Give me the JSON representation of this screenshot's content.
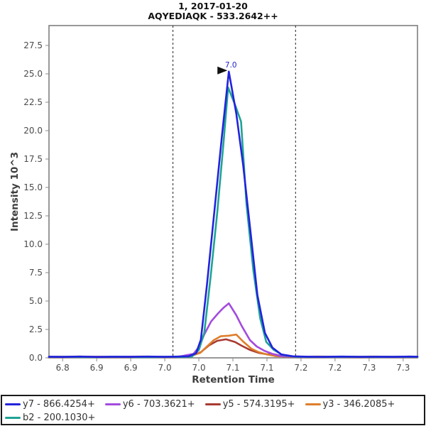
{
  "header": {
    "title_line1": "1, 2017-01-20",
    "title_line2": "AQYEDIAQK - 533.2642++"
  },
  "chart_data": {
    "type": "line",
    "title": "1, 2017-01-20",
    "subtitle": "AQYEDIAQK - 533.2642++",
    "xlabel": "Retention Time",
    "ylabel": "Intensity 10^3",
    "xlim": [
      6.78,
      7.321
    ],
    "ylim": [
      0,
      29.25
    ],
    "grid": false,
    "legend_position": "bottom",
    "x_ticks": [
      {
        "v": 6.8,
        "label": "6.8"
      },
      {
        "v": 6.85,
        "label": "6.9"
      },
      {
        "v": 6.9,
        "label": "6.9"
      },
      {
        "v": 6.95,
        "label": "7.0"
      },
      {
        "v": 7.0,
        "label": "7.0"
      },
      {
        "v": 7.05,
        "label": "7.1"
      },
      {
        "v": 7.1,
        "label": "7.1"
      },
      {
        "v": 7.15,
        "label": "7.2"
      },
      {
        "v": 7.2,
        "label": "7.2"
      },
      {
        "v": 7.25,
        "label": "7.3"
      },
      {
        "v": 7.3,
        "label": "7.3"
      }
    ],
    "y_ticks": [
      {
        "v": 0.0,
        "label": "0.0"
      },
      {
        "v": 2.5,
        "label": "2.5"
      },
      {
        "v": 5.0,
        "label": "5.0"
      },
      {
        "v": 7.5,
        "label": "7.5"
      },
      {
        "v": 10.0,
        "label": "10.0"
      },
      {
        "v": 12.5,
        "label": "12.5"
      },
      {
        "v": 15.0,
        "label": "15.0"
      },
      {
        "v": 17.5,
        "label": "17.5"
      },
      {
        "v": 20.0,
        "label": "20.0"
      },
      {
        "v": 22.5,
        "label": "22.5"
      },
      {
        "v": 25.0,
        "label": "25.0"
      },
      {
        "v": 27.5,
        "label": "27.5"
      }
    ],
    "peak_boundaries": {
      "left_rt": 6.962,
      "right_rt": 7.142,
      "style": "dashed",
      "color": "#222222"
    },
    "annotation": {
      "rt": 7.044,
      "intensity_k": 25.2,
      "label": "7.0",
      "color": "#2222CC"
    },
    "series": [
      {
        "id": "y7",
        "label": "y7 - 866.4254+",
        "color": "#2222DD",
        "points": [
          [
            6.78,
            0.1
          ],
          [
            6.8,
            0.08
          ],
          [
            6.825,
            0.11
          ],
          [
            6.85,
            0.08
          ],
          [
            6.875,
            0.1
          ],
          [
            6.9,
            0.09
          ],
          [
            6.925,
            0.11
          ],
          [
            6.95,
            0.09
          ],
          [
            6.97,
            0.11
          ],
          [
            6.985,
            0.14
          ],
          [
            6.996,
            0.4
          ],
          [
            7.003,
            1.6
          ],
          [
            7.012,
            6.5
          ],
          [
            7.023,
            13.0
          ],
          [
            7.034,
            19.6
          ],
          [
            7.044,
            25.2
          ],
          [
            7.055,
            21.5
          ],
          [
            7.065,
            17.0
          ],
          [
            7.076,
            11.0
          ],
          [
            7.086,
            5.5
          ],
          [
            7.097,
            2.2
          ],
          [
            7.108,
            0.9
          ],
          [
            7.121,
            0.3
          ],
          [
            7.138,
            0.14
          ],
          [
            7.16,
            0.1
          ],
          [
            7.185,
            0.09
          ],
          [
            7.21,
            0.11
          ],
          [
            7.235,
            0.09
          ],
          [
            7.26,
            0.1
          ],
          [
            7.285,
            0.09
          ],
          [
            7.31,
            0.11
          ],
          [
            7.321,
            0.1
          ]
        ]
      },
      {
        "id": "y6",
        "label": "y6 - 703.3621+",
        "color": "#A34BDE",
        "points": [
          [
            6.78,
            0.08
          ],
          [
            6.82,
            0.1
          ],
          [
            6.86,
            0.08
          ],
          [
            6.9,
            0.1
          ],
          [
            6.94,
            0.08
          ],
          [
            6.97,
            0.1
          ],
          [
            6.992,
            0.35
          ],
          [
            7.0,
            0.94
          ],
          [
            7.008,
            2.06
          ],
          [
            7.018,
            3.2
          ],
          [
            7.028,
            3.9
          ],
          [
            7.036,
            4.4
          ],
          [
            7.044,
            4.8
          ],
          [
            7.055,
            3.75
          ],
          [
            7.063,
            2.8
          ],
          [
            7.075,
            1.56
          ],
          [
            7.085,
            1.0
          ],
          [
            7.096,
            0.63
          ],
          [
            7.107,
            0.37
          ],
          [
            7.12,
            0.15
          ],
          [
            7.145,
            0.09
          ],
          [
            7.18,
            0.08
          ],
          [
            7.22,
            0.09
          ],
          [
            7.26,
            0.08
          ],
          [
            7.3,
            0.09
          ],
          [
            7.321,
            0.08
          ]
        ]
      },
      {
        "id": "y5",
        "label": "y5 - 574.3195+",
        "color": "#A93A32",
        "points": [
          [
            6.78,
            0.06
          ],
          [
            6.83,
            0.08
          ],
          [
            6.88,
            0.06
          ],
          [
            6.93,
            0.08
          ],
          [
            6.965,
            0.07
          ],
          [
            6.99,
            0.18
          ],
          [
            7.003,
            0.5
          ],
          [
            7.015,
            1.1
          ],
          [
            7.027,
            1.5
          ],
          [
            7.04,
            1.63
          ],
          [
            7.053,
            1.4
          ],
          [
            7.063,
            1.06
          ],
          [
            7.075,
            0.7
          ],
          [
            7.088,
            0.44
          ],
          [
            7.1,
            0.31
          ],
          [
            7.112,
            0.3
          ],
          [
            7.124,
            0.12
          ],
          [
            7.148,
            0.07
          ],
          [
            7.19,
            0.08
          ],
          [
            7.23,
            0.06
          ],
          [
            7.27,
            0.08
          ],
          [
            7.31,
            0.06
          ],
          [
            7.321,
            0.07
          ]
        ]
      },
      {
        "id": "y3",
        "label": "y3 - 346.2085+",
        "color": "#DE7E2B",
        "points": [
          [
            6.78,
            0.09
          ],
          [
            6.825,
            0.11
          ],
          [
            6.87,
            0.09
          ],
          [
            6.915,
            0.11
          ],
          [
            6.955,
            0.09
          ],
          [
            6.978,
            0.12
          ],
          [
            6.992,
            0.25
          ],
          [
            7.002,
            0.44
          ],
          [
            7.012,
            1.0
          ],
          [
            7.022,
            1.56
          ],
          [
            7.032,
            1.9
          ],
          [
            7.044,
            1.95
          ],
          [
            7.055,
            2.05
          ],
          [
            7.065,
            1.44
          ],
          [
            7.077,
            0.81
          ],
          [
            7.088,
            0.5
          ],
          [
            7.1,
            0.3
          ],
          [
            7.113,
            0.15
          ],
          [
            7.138,
            0.09
          ],
          [
            7.175,
            0.11
          ],
          [
            7.215,
            0.09
          ],
          [
            7.255,
            0.11
          ],
          [
            7.295,
            0.09
          ],
          [
            7.321,
            0.1
          ]
        ]
      },
      {
        "id": "b2",
        "label": "b2 - 200.1030+",
        "color": "#1EA394",
        "points": [
          [
            6.78,
            0.08
          ],
          [
            6.81,
            0.09
          ],
          [
            6.845,
            0.07
          ],
          [
            6.88,
            0.09
          ],
          [
            6.915,
            0.07
          ],
          [
            6.95,
            0.09
          ],
          [
            6.975,
            0.08
          ],
          [
            6.99,
            0.12
          ],
          [
            7.0,
            0.7
          ],
          [
            7.008,
            2.2
          ],
          [
            7.017,
            7.0
          ],
          [
            7.027,
            12.8
          ],
          [
            7.036,
            18.8
          ],
          [
            7.043,
            23.8
          ],
          [
            7.053,
            22.3
          ],
          [
            7.062,
            20.8
          ],
          [
            7.07,
            13.5
          ],
          [
            7.08,
            7.7
          ],
          [
            7.09,
            3.5
          ],
          [
            7.099,
            1.4
          ],
          [
            7.11,
            0.7
          ],
          [
            7.123,
            0.25
          ],
          [
            7.14,
            0.1
          ],
          [
            7.17,
            0.08
          ],
          [
            7.2,
            0.09
          ],
          [
            7.24,
            0.08
          ],
          [
            7.28,
            0.09
          ],
          [
            7.321,
            0.08
          ]
        ]
      }
    ],
    "draw_order": [
      "y5",
      "y3",
      "y6",
      "b2",
      "y7"
    ]
  }
}
